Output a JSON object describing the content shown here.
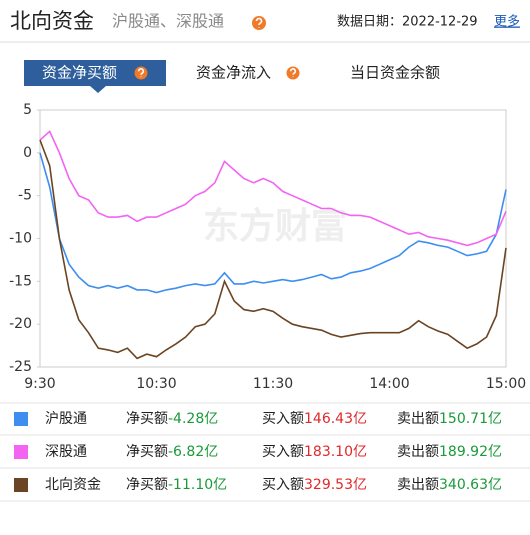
{
  "header": {
    "title": "北向资金",
    "subtitle": "沪股通、深股通",
    "date": "数据日期：2022-12-29",
    "more": "更多"
  },
  "tabs": [
    "资金净买额",
    "资金净流入",
    "当日资金余额"
  ],
  "watermark": "东方财富",
  "chart_data": {
    "type": "line",
    "categories": [
      "9:30",
      null,
      null,
      null,
      null,
      null,
      null,
      null,
      null,
      null,
      null,
      null,
      "10:30",
      null,
      null,
      null,
      null,
      null,
      null,
      null,
      null,
      null,
      null,
      null,
      "11:30",
      null,
      null,
      null,
      null,
      null,
      null,
      null,
      null,
      null,
      null,
      null,
      "14:00",
      null,
      null,
      null,
      null,
      null,
      null,
      null,
      null,
      null,
      null,
      null,
      "15:00"
    ],
    "ylim": [
      -25,
      5
    ],
    "yticks": [
      5,
      0,
      -5,
      -10,
      -15,
      -20,
      -25
    ],
    "grid": false,
    "series": [
      {
        "name": "沪股通",
        "color": "#3d8ef0",
        "values": [
          0,
          -4,
          -10,
          -13,
          -14.5,
          -15.5,
          -15.8,
          -15.5,
          -15.8,
          -15.5,
          -16,
          -16,
          -16.3,
          -16,
          -15.8,
          -15.5,
          -15.3,
          -15.5,
          -15.3,
          -14,
          -15.3,
          -15.3,
          -15,
          -15.2,
          -15,
          -14.8,
          -15,
          -14.8,
          -14.5,
          -14.2,
          -14.7,
          -14.5,
          -14,
          -13.8,
          -13.5,
          -13,
          -12.5,
          -12,
          -11,
          -10.3,
          -10.5,
          -10.8,
          -11,
          -11.5,
          -12,
          -11.8,
          -11.5,
          -9.5,
          -4.28
        ]
      },
      {
        "name": "深股通",
        "color": "#f364f3",
        "values": [
          1.5,
          2.5,
          0,
          -3,
          -5,
          -5.5,
          -7,
          -7.5,
          -7.5,
          -7.3,
          -8,
          -7.5,
          -7.5,
          -7,
          -6.5,
          -6,
          -5,
          -4.5,
          -3.5,
          -1,
          -2,
          -3,
          -3.5,
          -3,
          -3.5,
          -4.5,
          -5,
          -5.5,
          -6,
          -6.5,
          -6.5,
          -7,
          -7.3,
          -7.3,
          -7.5,
          -8,
          -8.5,
          -9,
          -9.5,
          -9.3,
          -9.8,
          -10,
          -10.2,
          -10.5,
          -10.8,
          -10.5,
          -10,
          -9.5,
          -6.82
        ]
      },
      {
        "name": "北向资金",
        "color": "#6b4423",
        "values": [
          1.5,
          -1.5,
          -10,
          -16,
          -19.5,
          -21,
          -22.8,
          -23,
          -23.3,
          -22.8,
          -24,
          -23.5,
          -23.8,
          -23,
          -22.3,
          -21.5,
          -20.3,
          -20,
          -18.8,
          -15,
          -17.3,
          -18.3,
          -18.5,
          -18.2,
          -18.5,
          -19.3,
          -20,
          -20.3,
          -20.5,
          -20.7,
          -21.2,
          -21.5,
          -21.3,
          -21.1,
          -21,
          -21,
          -21,
          -21,
          -20.5,
          -19.6,
          -20.3,
          -20.8,
          -21.2,
          -22,
          -22.8,
          -22.3,
          -21.5,
          -19,
          -11.1
        ]
      }
    ]
  },
  "table": {
    "rows": [
      {
        "net_label": "净买额",
        "net": "-4.28亿",
        "buy_label": "买入额",
        "buy": "146.43亿",
        "sell_label": "卖出额",
        "sell": "150.71亿"
      },
      {
        "net_label": "净买额",
        "net": "-6.82亿",
        "buy_label": "买入额",
        "buy": "183.10亿",
        "sell_label": "卖出额",
        "sell": "189.92亿"
      },
      {
        "net_label": "净买额",
        "net": "-11.10亿",
        "buy_label": "买入额",
        "buy": "329.53亿",
        "sell_label": "卖出额",
        "sell": "340.63亿"
      }
    ]
  }
}
